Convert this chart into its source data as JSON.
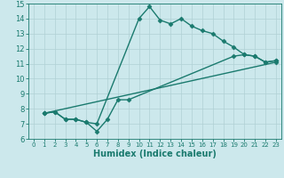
{
  "line1_x": [
    1,
    2,
    3,
    4,
    5,
    6,
    10,
    11,
    12,
    13,
    14,
    15,
    16,
    17,
    18,
    19,
    20,
    21,
    22,
    23
  ],
  "line1_y": [
    7.7,
    7.8,
    7.3,
    7.3,
    7.1,
    7.0,
    14.0,
    14.8,
    13.9,
    13.65,
    14.0,
    13.5,
    13.2,
    13.0,
    12.5,
    12.1,
    11.6,
    11.5,
    11.1,
    11.2
  ],
  "line2_x": [
    1,
    2,
    3,
    4,
    5,
    6,
    7,
    8,
    9,
    19,
    20,
    21,
    22,
    23
  ],
  "line2_y": [
    7.7,
    7.8,
    7.3,
    7.3,
    7.1,
    6.5,
    7.3,
    8.6,
    8.6,
    11.5,
    11.6,
    11.5,
    11.1,
    11.2
  ],
  "line3_x": [
    1,
    23
  ],
  "line3_y": [
    7.7,
    11.1
  ],
  "color": "#1a7a6e",
  "bg_color": "#cce8ec",
  "grid_color": "#b0d0d5",
  "xlabel": "Humidex (Indice chaleur)",
  "xlim": [
    -0.5,
    23.5
  ],
  "ylim": [
    6,
    15
  ],
  "xticks": [
    0,
    1,
    2,
    3,
    4,
    5,
    6,
    7,
    8,
    9,
    10,
    11,
    12,
    13,
    14,
    15,
    16,
    17,
    18,
    19,
    20,
    21,
    22,
    23
  ],
  "yticks": [
    6,
    7,
    8,
    9,
    10,
    11,
    12,
    13,
    14,
    15
  ],
  "marker": "D",
  "markersize": 2.5,
  "linewidth": 1.0,
  "tick_fontsize": 6,
  "xlabel_fontsize": 7
}
